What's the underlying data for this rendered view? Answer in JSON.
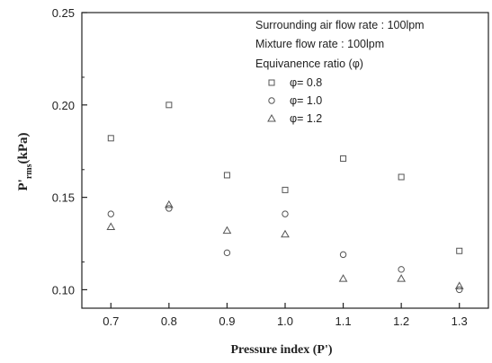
{
  "chart_data": {
    "type": "scatter",
    "x": [
      0.7,
      0.8,
      0.9,
      1.0,
      1.1,
      1.2,
      1.3
    ],
    "series": [
      {
        "name": "φ= 0.8",
        "marker": "square",
        "values": [
          0.182,
          0.2,
          0.162,
          0.154,
          0.171,
          0.161,
          0.121
        ]
      },
      {
        "name": "φ= 1.0",
        "marker": "circle",
        "values": [
          0.141,
          0.144,
          0.12,
          0.141,
          0.119,
          0.111,
          0.1
        ]
      },
      {
        "name": "φ= 1.2",
        "marker": "triangle",
        "values": [
          0.134,
          0.146,
          0.132,
          0.13,
          0.106,
          0.106,
          0.102
        ]
      }
    ],
    "xlim": [
      0.65,
      1.35
    ],
    "ylim": [
      0.09,
      0.25
    ],
    "xticks": [
      "0.7",
      "0.8",
      "0.9",
      "1.0",
      "1.1",
      "1.2",
      "1.3"
    ],
    "yticks": [
      "0.10",
      "0.15",
      "0.20",
      "0.25"
    ],
    "xlabel": "Pressure index (P')",
    "ylabel": "P'rms(kPa)",
    "marker_color": "#555555",
    "legend": {
      "placement": "top-right",
      "lines": [
        "Surrounding air flow rate : 100lpm",
        "Mixture flow rate : 100lpm",
        "Equivanence ratio (φ)"
      ]
    }
  }
}
